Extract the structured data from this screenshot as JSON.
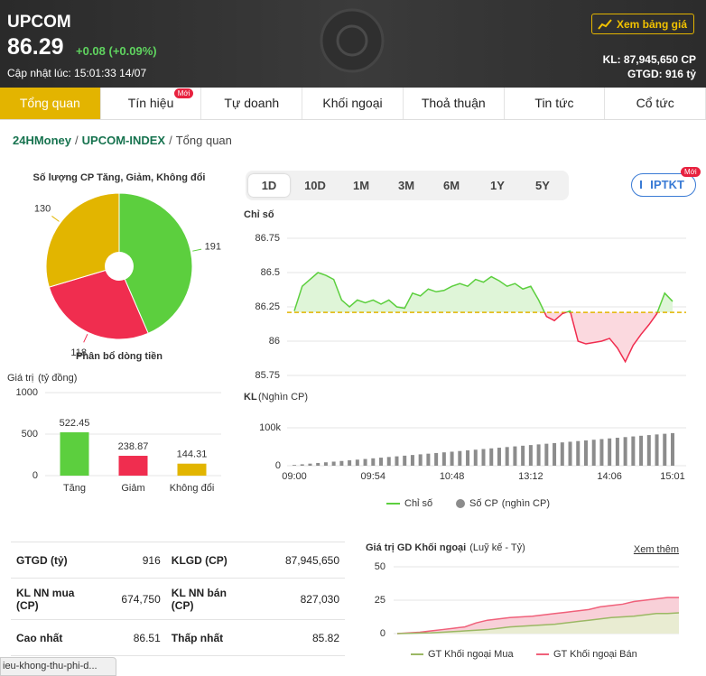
{
  "header": {
    "title": "UPCOM",
    "price": "86.29",
    "change": "+0.08 (+0.09%)",
    "updated": "Cập nhật lúc: 15:01:33 14/07",
    "button": "Xem bảng giá",
    "volume": "KL: 87,945,650 CP",
    "value": "GTGD: 916 tỷ"
  },
  "tabs": {
    "items": [
      "Tổng quan",
      "Tín hiệu",
      "Tự doanh",
      "Khối ngoại",
      "Thoả thuận",
      "Tin tức",
      "Cổ tức"
    ],
    "active": 0,
    "badge": {
      "text": "Mới",
      "tab": 1
    }
  },
  "breadcrumb": {
    "items": [
      "24HMoney",
      "UPCOM-INDEX",
      "Tổng quan"
    ],
    "separator": "/"
  },
  "periods": {
    "items": [
      "1D",
      "10D",
      "1M",
      "3M",
      "6M",
      "1Y",
      "5Y"
    ],
    "active": 0
  },
  "ptkt": {
    "label": "PTKT",
    "badge": "Mới"
  },
  "stats": {
    "rows": [
      [
        "GTGD (tỷ)",
        "916",
        "KLGD (CP)",
        "87,945,650"
      ],
      [
        "KL NN mua (CP)",
        "674,750",
        "KL NN bán (CP)",
        "827,030"
      ],
      [
        "Cao nhất",
        "86.51",
        "Thấp nhất",
        "85.82"
      ]
    ]
  },
  "chart_data": [
    {
      "type": "pie",
      "title": "Số lượng CP Tăng, Giảm, Không đổi",
      "values": [
        191,
        118,
        130
      ],
      "colors": [
        "#5ccf3e",
        "#f02d4f",
        "#e2b500"
      ]
    },
    {
      "type": "bar",
      "title": "Phân bổ dòng tiền",
      "ylabel": "Giá trị",
      "yunit": "(tỷ đồng)",
      "categories": [
        "Tăng",
        "Giảm",
        "Không đổi"
      ],
      "values": [
        522.45,
        238.87,
        144.31
      ],
      "colors": [
        "#5ccf3e",
        "#f02d4f",
        "#e2b500"
      ],
      "ylim": [
        0,
        1000
      ],
      "yticks": [
        0,
        500,
        1000
      ],
      "grid": true
    },
    {
      "type": "line",
      "title": "Chỉ số",
      "series": [
        {
          "name": "Chỉ số",
          "color": "#5ccf3e",
          "values": [
            86.22,
            86.4,
            86.45,
            86.5,
            86.48,
            86.45,
            86.3,
            86.25,
            86.3,
            86.28,
            86.3,
            86.27,
            86.3,
            86.25,
            86.24,
            86.35,
            86.33,
            86.38,
            86.36,
            86.37,
            86.4,
            86.42,
            86.4,
            86.45,
            86.43,
            86.47,
            86.44,
            86.4,
            86.42,
            86.38,
            86.4,
            86.3,
            86.18,
            86.15,
            86.2,
            86.22,
            86.0,
            85.98,
            85.99,
            86.0,
            86.02,
            85.95,
            85.85,
            85.97,
            86.05,
            86.12,
            86.2,
            86.35,
            86.29
          ]
        }
      ],
      "reference": 86.21,
      "reference_color": "#e2b500",
      "below_color": "#f02d4f",
      "ylim": [
        85.7,
        86.8
      ],
      "yticks": [
        85.75,
        86,
        86.25,
        86.5,
        86.75
      ],
      "grid": true
    },
    {
      "type": "bar",
      "title": "KL",
      "subtitle": "(Nghìn CP)",
      "categories": [
        "09:00",
        null,
        null,
        null,
        null,
        null,
        null,
        null,
        null,
        null,
        "09:54",
        null,
        null,
        null,
        null,
        null,
        null,
        null,
        null,
        null,
        "10:48",
        null,
        null,
        null,
        null,
        null,
        null,
        null,
        null,
        null,
        "13:12",
        null,
        null,
        null,
        null,
        null,
        null,
        null,
        null,
        null,
        "14:06",
        null,
        null,
        null,
        null,
        null,
        null,
        null,
        "15:01"
      ],
      "series": [
        {
          "name": "Số CP",
          "unit": "(nghìn CP)",
          "color": "#8c8c8c",
          "values": [
            2000,
            3750,
            5500,
            7250,
            9000,
            10750,
            12500,
            14250,
            16000,
            17750,
            19500,
            21250,
            23000,
            24750,
            26500,
            28250,
            30000,
            31750,
            33500,
            35250,
            37000,
            38750,
            40500,
            42250,
            44000,
            45750,
            47500,
            49250,
            51000,
            52750,
            54500,
            56250,
            58000,
            59750,
            61500,
            63250,
            65000,
            66750,
            68500,
            70250,
            72000,
            73750,
            75500,
            77250,
            79000,
            80750,
            82500,
            84250,
            86000
          ]
        }
      ],
      "ylim": [
        0,
        125000
      ],
      "yticks": [
        0,
        {
          "value": 100000,
          "label": "100k"
        }
      ],
      "grid": true
    },
    {
      "type": "area",
      "title": "Giá trị GD Khối ngoại",
      "subtitle": "(Luỹ kế - Tỷ)",
      "link": "Xem thêm",
      "series": [
        {
          "name": "GT Khối ngoại Mua",
          "color": "#9bb864",
          "fill": "#e9ecd2",
          "values": [
            0,
            0.2,
            0.4,
            0.6,
            1,
            1.5,
            2,
            2.5,
            3,
            4,
            5,
            5.5,
            6,
            6.5,
            7,
            8,
            9,
            10,
            11,
            12,
            12.5,
            13,
            14,
            15,
            15,
            15.5
          ]
        },
        {
          "name": "GT Khối ngoại Bán",
          "color": "#f0607a",
          "fill": "#f8d0d8",
          "values": [
            0,
            0.5,
            1,
            2,
            3,
            4,
            5,
            8,
            10,
            11,
            12,
            12.5,
            13,
            14,
            15,
            16,
            17,
            18,
            20,
            21,
            22,
            24,
            25,
            26,
            27,
            27
          ]
        }
      ],
      "ylim": [
        0,
        55
      ],
      "yticks": [
        0,
        25,
        50
      ],
      "grid": true
    }
  ],
  "status_url": "ieu-khong-thu-phi-d..."
}
